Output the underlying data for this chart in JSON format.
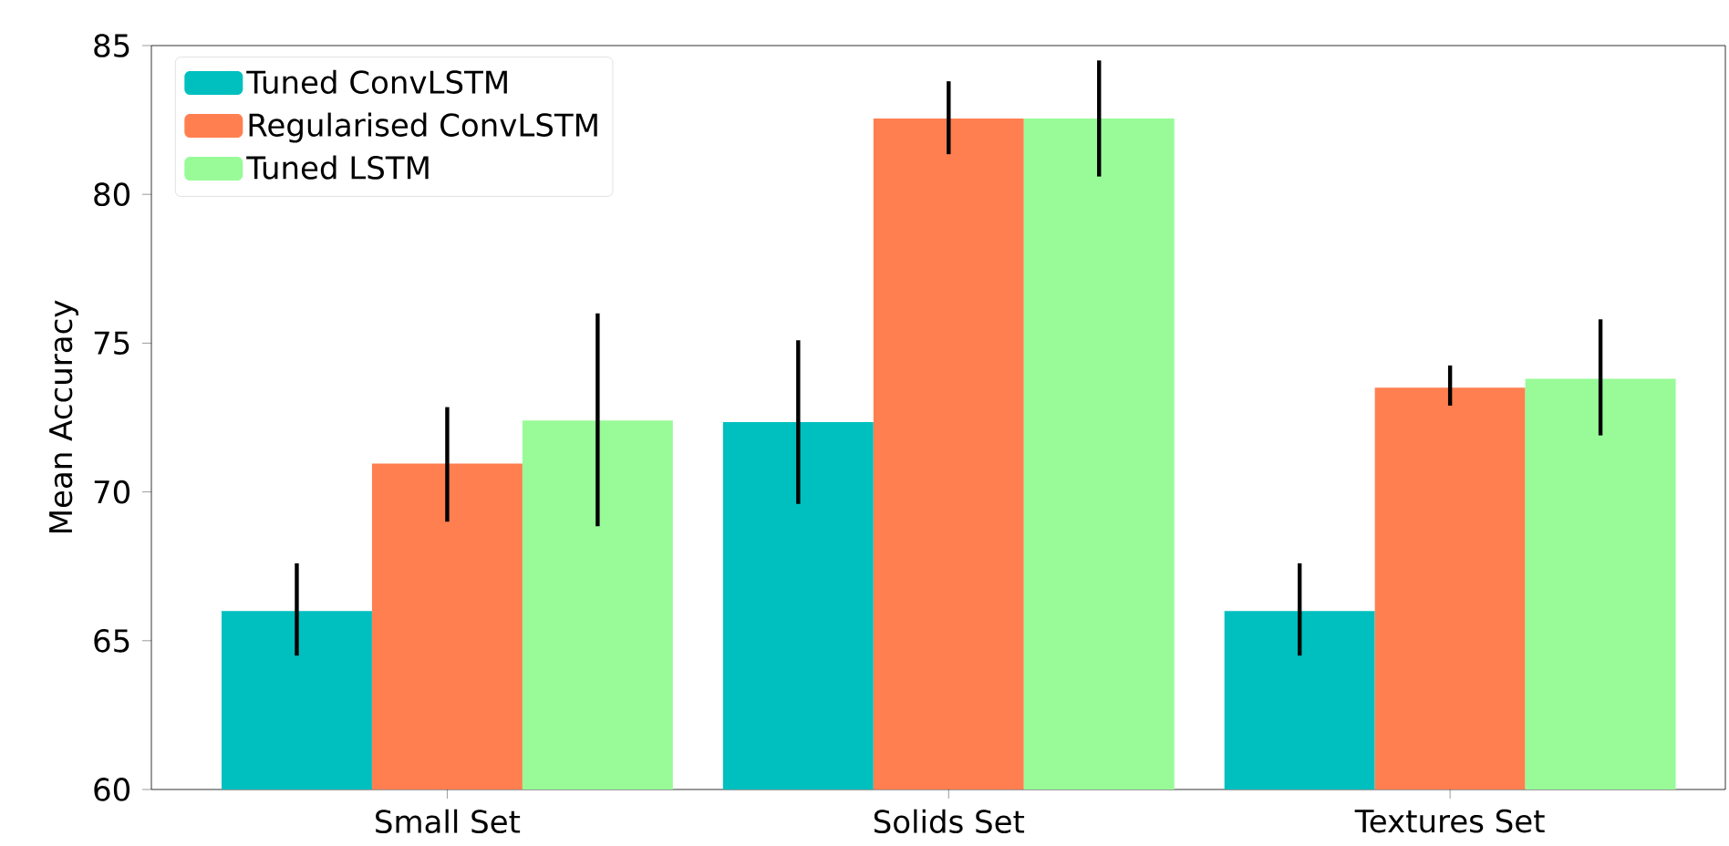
{
  "chart_data": {
    "type": "bar",
    "ylabel": "Mean Accuracy",
    "categories": [
      "Small Set",
      "Solids Set",
      "Textures Set"
    ],
    "series": [
      {
        "name": "Tuned ConvLSTM",
        "color": "#00bfbf",
        "values": [
          66.0,
          72.35,
          66.0
        ],
        "errors": [
          [
            64.5,
            67.6
          ],
          [
            69.6,
            75.1
          ],
          [
            64.5,
            67.6
          ]
        ]
      },
      {
        "name": "Regularised ConvLSTM",
        "color": "#ff7f50",
        "values": [
          70.95,
          82.55,
          73.5
        ],
        "errors": [
          [
            69.0,
            72.85
          ],
          [
            81.35,
            83.8
          ],
          [
            72.9,
            74.25
          ]
        ]
      },
      {
        "name": "Tuned LSTM",
        "color": "#98fb98",
        "values": [
          72.4,
          82.55,
          73.8
        ],
        "errors": [
          [
            68.85,
            76.0
          ],
          [
            80.6,
            84.5
          ],
          [
            71.9,
            75.8
          ]
        ]
      }
    ],
    "ylim": [
      60,
      85
    ],
    "yticks": [
      60,
      65,
      70,
      75,
      80,
      85
    ],
    "grid": false,
    "legend": "top left"
  }
}
